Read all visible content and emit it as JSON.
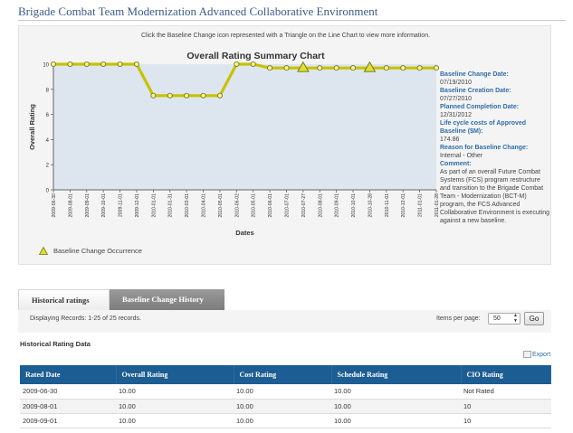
{
  "page": {
    "title": "Brigade Combat Team Modernization Advanced Collaborative Environment"
  },
  "chart_panel": {
    "hint": "Click the Baseline Change icon represented with a Triangle on the Line Chart to view more information.",
    "legend_label": "Baseline Change Occurrence"
  },
  "chart_data": {
    "type": "line",
    "title": "Overall Rating Summary Chart",
    "xlabel": "Dates",
    "ylabel": "Overall Rating",
    "ylim": [
      0,
      10
    ],
    "y_ticks": [
      0,
      2,
      4,
      6,
      8,
      10
    ],
    "grid": false,
    "series": [
      {
        "color": "#c7c200",
        "points": [
          {
            "x": "2009-06-30",
            "y": 10,
            "marker": "circle"
          },
          {
            "x": "2009-08-01",
            "y": 10,
            "marker": "circle"
          },
          {
            "x": "2009-09-01",
            "y": 10,
            "marker": "circle"
          },
          {
            "x": "2009-10-01",
            "y": 10,
            "marker": "circle"
          },
          {
            "x": "2009-11-01",
            "y": 10,
            "marker": "circle"
          },
          {
            "x": "2009-12-01",
            "y": 10,
            "marker": "circle"
          },
          {
            "x": "2010-01-01",
            "y": 7.5,
            "marker": "circle"
          },
          {
            "x": "2010-01-31",
            "y": 7.5,
            "marker": "circle"
          },
          {
            "x": "2010-03-01",
            "y": 7.5,
            "marker": "circle"
          },
          {
            "x": "2010-04-01",
            "y": 7.5,
            "marker": "circle"
          },
          {
            "x": "2010-05-01",
            "y": 7.5,
            "marker": "circle"
          },
          {
            "x": "2010-06-02",
            "y": 10,
            "marker": "circle"
          },
          {
            "x": "2010-05-01",
            "y": 10,
            "marker": "circle"
          },
          {
            "x": "2010-06-01",
            "y": 9.7,
            "marker": "circle"
          },
          {
            "x": "2010-07-01",
            "y": 9.7,
            "marker": "circle"
          },
          {
            "x": "2010-07-27",
            "y": 9.7,
            "marker": "triangle"
          },
          {
            "x": "2010-08-01",
            "y": 9.7,
            "marker": "circle"
          },
          {
            "x": "2010-09-01",
            "y": 9.7,
            "marker": "circle"
          },
          {
            "x": "2010-10-01",
            "y": 9.7,
            "marker": "circle"
          },
          {
            "x": "2010-10-28",
            "y": 9.7,
            "marker": "triangle"
          },
          {
            "x": "2010-11-01",
            "y": 9.7,
            "marker": "circle"
          },
          {
            "x": "2010-12-01",
            "y": 9.7,
            "marker": "circle"
          },
          {
            "x": "2011-01-01",
            "y": 9.7,
            "marker": "circle"
          },
          {
            "x": "2011-01-28",
            "y": 9.7,
            "marker": "circle"
          }
        ]
      }
    ]
  },
  "baseline_info": {
    "change_date_label": "Baseline Change Date:",
    "change_date": "07/19/2010",
    "creation_date_label": "Baseline Creation Date:",
    "creation_date": "07/27/2010",
    "planned_completion_label": "Planned Completion Date:",
    "planned_completion": "12/31/2012",
    "lifecycle_costs_label": "Life cycle costs of Approved Baseline ($M):",
    "lifecycle_costs": "174.86",
    "reason_label": "Reason for Baseline Change:",
    "reason": "Internal - Other",
    "comment_label": "Comment:",
    "comment": "As part of an overall Future Combat Systems (FCS) program restructure and transition to the Brigade Combat Team - Modernization (BCT-M) program, the FCS Advanced Collaborative Environment is executing against a new baseline."
  },
  "tabs": {
    "historical": "Historical ratings",
    "baseline_history": "Baseline Change History"
  },
  "records": {
    "display_text": "Displaying Records: 1-25 of 25 records.",
    "per_page_label": "Items per page:",
    "per_page_value": "50",
    "go_label": "Go"
  },
  "table": {
    "title": "Historical Rating Data",
    "export_label": "Export",
    "columns": [
      "Rated Date",
      "Overall Rating",
      "Cost Rating",
      "Schedule Rating",
      "CIO Rating"
    ],
    "rows": [
      [
        "2009-06-30",
        "10.00",
        "10.00",
        "10.00",
        "Not Rated"
      ],
      [
        "2009-08-01",
        "10.00",
        "10.00",
        "10.00",
        "10"
      ],
      [
        "2009-09-01",
        "10.00",
        "10.00",
        "10.00",
        "10"
      ]
    ]
  },
  "colors": {
    "header_blue": "#1c5d93",
    "label_blue": "#2f6ea8",
    "line_yellow": "#c7c200",
    "plot_bg": "#dde6ee"
  }
}
